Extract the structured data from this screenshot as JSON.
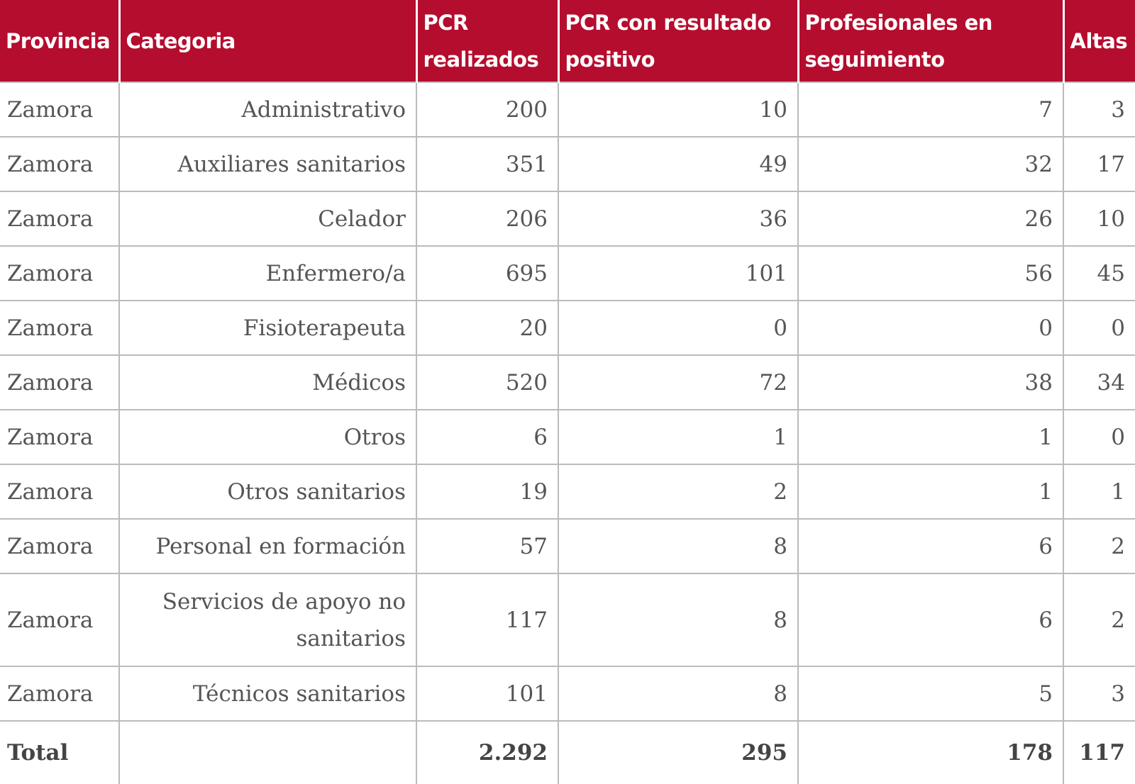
{
  "table": {
    "header": [
      "Provincia",
      "Categoria",
      "PCR realizados",
      "PCR con resultado positivo",
      "Profesionales en seguimiento",
      "Altas"
    ],
    "rows": [
      [
        "Zamora",
        "Administrativo",
        "200",
        "10",
        "7",
        "3"
      ],
      [
        "Zamora",
        "Auxiliares sanitarios",
        "351",
        "49",
        "32",
        "17"
      ],
      [
        "Zamora",
        "Celador",
        "206",
        "36",
        "26",
        "10"
      ],
      [
        "Zamora",
        "Enfermero/a",
        "695",
        "101",
        "56",
        "45"
      ],
      [
        "Zamora",
        "Fisioterapeuta",
        "20",
        "0",
        "0",
        "0"
      ],
      [
        "Zamora",
        "Médicos",
        "520",
        "72",
        "38",
        "34"
      ],
      [
        "Zamora",
        "Otros",
        "6",
        "1",
        "1",
        "0"
      ],
      [
        "Zamora",
        "Otros sanitarios",
        "19",
        "2",
        "1",
        "1"
      ],
      [
        "Zamora",
        "Personal en formación",
        "57",
        "8",
        "6",
        "2"
      ],
      [
        "Zamora",
        "Servicios de apoyo no sanitarios",
        "117",
        "8",
        "6",
        "2"
      ],
      [
        "Zamora",
        "Técnicos sanitarios",
        "101",
        "8",
        "5",
        "3"
      ]
    ],
    "total": [
      "Total",
      "2.292",
      "295",
      "178",
      "117"
    ]
  }
}
